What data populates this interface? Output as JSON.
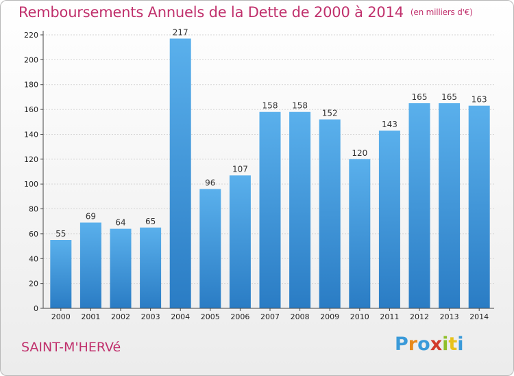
{
  "chart_data": {
    "type": "bar",
    "title": "Remboursements Annuels de la Dette de 2000 à 2014",
    "unit": "(en milliers d'€)",
    "categories": [
      "2000",
      "2001",
      "2002",
      "2003",
      "2004",
      "2005",
      "2006",
      "2007",
      "2008",
      "2009",
      "2010",
      "2011",
      "2012",
      "2013",
      "2014"
    ],
    "values": [
      55,
      69,
      64,
      65,
      217,
      96,
      107,
      158,
      158,
      152,
      120,
      143,
      165,
      165,
      163
    ],
    "ylim": [
      0,
      220
    ],
    "yticks": [
      0,
      20,
      40,
      60,
      80,
      100,
      120,
      140,
      160,
      180,
      200,
      220
    ],
    "grid": true,
    "bar_color": "#4f9fe0"
  },
  "footer": {
    "city": "SAINT-M'HERVé",
    "logo": "Proxiti",
    "logo_colors": [
      "#3a9ad9",
      "#e8891a",
      "#3a9ad9",
      "#d23a2a",
      "#8fbf2a",
      "#e8c21a",
      "#3a9ad9"
    ]
  }
}
